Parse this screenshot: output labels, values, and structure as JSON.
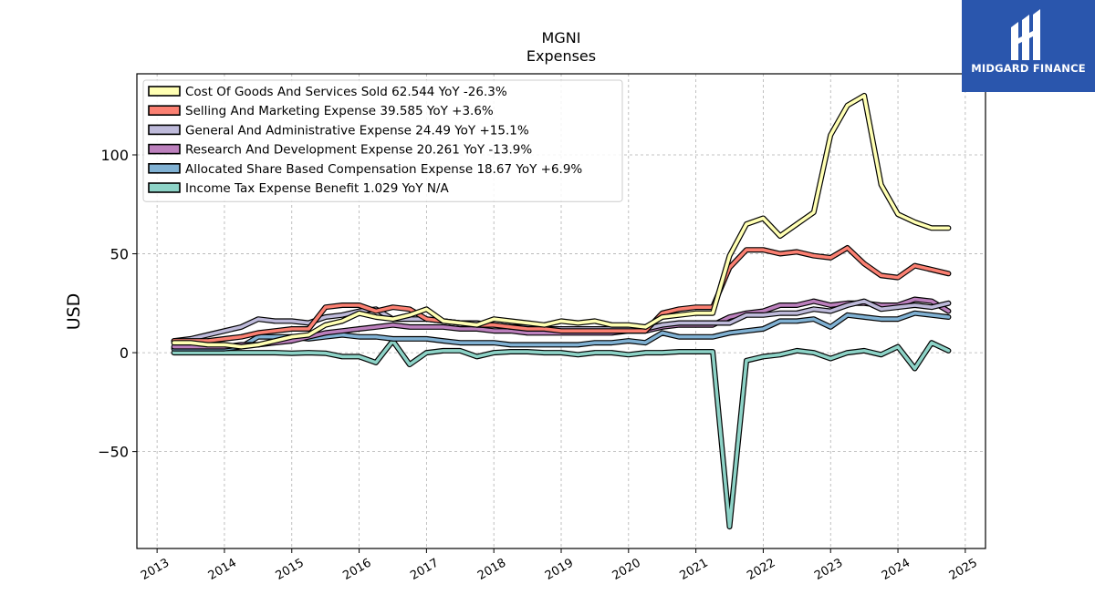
{
  "brand": {
    "name": "MIDGARD FINANCE",
    "bg_color": "#2a56ad"
  },
  "chart_data": {
    "type": "line",
    "title": "MGNI",
    "subtitle": "Expenses",
    "ylabel": "USD",
    "xlabel": "",
    "xlim": [
      2012.7,
      2025.3
    ],
    "ylim": [
      -99,
      141
    ],
    "yticks": [
      -50,
      0,
      50,
      100
    ],
    "ytick_labels": [
      "−50",
      "0",
      "50",
      "100"
    ],
    "xticks": [
      2013,
      2014,
      2015,
      2016,
      2017,
      2018,
      2019,
      2020,
      2021,
      2022,
      2023,
      2024,
      2025
    ],
    "grid": true,
    "legend_position": "top-left",
    "series": [
      {
        "name": "Cost Of Goods And Services Sold",
        "legend": "Cost Of Goods And Services Sold  62.544 YoY -26.3%",
        "color": "#ffffb3",
        "x": [
          2013.25,
          2013.5,
          2013.75,
          2014.0,
          2014.25,
          2014.5,
          2014.75,
          2015.0,
          2015.25,
          2015.5,
          2015.75,
          2016.0,
          2016.25,
          2016.5,
          2016.75,
          2017.0,
          2017.25,
          2017.5,
          2017.75,
          2018.0,
          2018.25,
          2018.5,
          2018.75,
          2019.0,
          2019.25,
          2019.5,
          2019.75,
          2020.0,
          2020.25,
          2020.5,
          2020.75,
          2021.0,
          2021.25,
          2021.5,
          2021.75,
          2022.0,
          2022.25,
          2022.5,
          2022.75,
          2023.0,
          2023.25,
          2023.5,
          2023.75,
          2024.0,
          2024.25,
          2024.5,
          2024.75
        ],
        "values": [
          5,
          5,
          4,
          4,
          3,
          4,
          6,
          8,
          9,
          14,
          16,
          20,
          18,
          17,
          19,
          22,
          16,
          15,
          14,
          17,
          16,
          15,
          14,
          16,
          15,
          16,
          14,
          14,
          13,
          18,
          19,
          20,
          20,
          49,
          65,
          68,
          59,
          65,
          71,
          110,
          125,
          130,
          85,
          70,
          66,
          63,
          63
        ]
      },
      {
        "name": "Selling And Marketing Expense",
        "legend": "Selling And Marketing Expense  39.585 YoY +3.6%",
        "color": "#fb8072",
        "x": [
          2013.25,
          2013.5,
          2013.75,
          2014.0,
          2014.25,
          2014.5,
          2014.75,
          2015.0,
          2015.25,
          2015.5,
          2015.75,
          2016.0,
          2016.25,
          2016.5,
          2016.75,
          2017.0,
          2017.25,
          2017.5,
          2017.75,
          2018.0,
          2018.25,
          2018.5,
          2018.75,
          2019.0,
          2019.25,
          2019.5,
          2019.75,
          2020.0,
          2020.25,
          2020.5,
          2020.75,
          2021.0,
          2021.25,
          2021.5,
          2021.75,
          2022.0,
          2022.25,
          2022.5,
          2022.75,
          2023.0,
          2023.25,
          2023.5,
          2023.75,
          2024.0,
          2024.25,
          2024.5,
          2024.75
        ],
        "values": [
          6,
          6,
          6,
          7,
          8,
          10,
          11,
          12,
          12,
          23,
          24,
          24,
          21,
          23,
          22,
          17,
          16,
          15,
          14,
          14,
          13,
          12,
          12,
          11,
          11,
          11,
          11,
          11,
          11,
          20,
          22,
          23,
          23,
          43,
          52,
          52,
          50,
          51,
          49,
          48,
          53,
          45,
          39,
          38,
          44,
          42,
          40
        ]
      },
      {
        "name": "General And Administrative Expense",
        "legend": "General And Administrative Expense  24.49 YoY +15.1%",
        "color": "#bebada",
        "x": [
          2013.25,
          2013.5,
          2013.75,
          2014.0,
          2014.25,
          2014.5,
          2014.75,
          2015.0,
          2015.25,
          2015.5,
          2015.75,
          2016.0,
          2016.25,
          2016.5,
          2016.75,
          2017.0,
          2017.25,
          2017.5,
          2017.75,
          2018.0,
          2018.25,
          2018.5,
          2018.75,
          2019.0,
          2019.25,
          2019.5,
          2019.75,
          2020.0,
          2020.25,
          2020.5,
          2020.75,
          2021.0,
          2021.25,
          2021.5,
          2021.75,
          2022.0,
          2022.25,
          2022.5,
          2022.75,
          2023.0,
          2023.25,
          2023.5,
          2023.75,
          2024.0,
          2024.25,
          2024.5,
          2024.75
        ],
        "values": [
          6,
          7,
          9,
          11,
          13,
          17,
          16,
          16,
          15,
          18,
          19,
          21,
          22,
          17,
          17,
          17,
          16,
          15,
          15,
          14,
          13,
          13,
          12,
          12,
          12,
          12,
          12,
          12,
          12,
          14,
          15,
          15,
          15,
          15,
          19,
          19,
          20,
          20,
          22,
          21,
          24,
          26,
          22,
          23,
          24,
          23,
          25
        ]
      },
      {
        "name": "Research And Development Expense",
        "legend": "Research And Development Expense  20.261 YoY -13.9%",
        "color": "#bc80bd",
        "x": [
          2013.25,
          2013.5,
          2013.75,
          2014.0,
          2014.25,
          2014.5,
          2014.75,
          2015.0,
          2015.25,
          2015.5,
          2015.75,
          2016.0,
          2016.25,
          2016.5,
          2016.75,
          2017.0,
          2017.25,
          2017.5,
          2017.75,
          2018.0,
          2018.25,
          2018.5,
          2018.75,
          2019.0,
          2019.25,
          2019.5,
          2019.75,
          2020.0,
          2020.25,
          2020.5,
          2020.75,
          2021.0,
          2021.25,
          2021.5,
          2021.75,
          2022.0,
          2022.25,
          2022.5,
          2022.75,
          2023.0,
          2023.25,
          2023.5,
          2023.75,
          2024.0,
          2024.25,
          2024.5,
          2024.75
        ],
        "values": [
          3,
          3,
          3,
          3,
          4,
          4,
          5,
          6,
          8,
          10,
          11,
          12,
          13,
          14,
          13,
          13,
          13,
          12,
          12,
          11,
          11,
          10,
          10,
          10,
          10,
          10,
          10,
          11,
          11,
          13,
          14,
          14,
          14,
          18,
          20,
          21,
          24,
          24,
          26,
          24,
          25,
          25,
          24,
          24,
          27,
          26,
          21
        ]
      },
      {
        "name": "Allocated Share Based Compensation Expense",
        "legend": "Allocated Share Based Compensation Expense  18.67 YoY +6.9%",
        "color": "#80b1d3",
        "x": [
          2013.25,
          2013.5,
          2013.75,
          2014.0,
          2014.25,
          2014.5,
          2014.75,
          2015.0,
          2015.25,
          2015.5,
          2015.75,
          2016.0,
          2016.25,
          2016.5,
          2016.75,
          2017.0,
          2017.25,
          2017.5,
          2017.75,
          2018.0,
          2018.25,
          2018.5,
          2018.75,
          2019.0,
          2019.25,
          2019.5,
          2019.75,
          2020.0,
          2020.25,
          2020.5,
          2020.75,
          2021.0,
          2021.25,
          2021.5,
          2021.75,
          2022.0,
          2022.25,
          2022.5,
          2022.75,
          2023.0,
          2023.25,
          2023.5,
          2023.75,
          2024.0,
          2024.25,
          2024.5,
          2024.75
        ],
        "values": [
          2,
          2,
          2,
          2,
          3,
          8,
          8,
          8,
          7,
          8,
          9,
          8,
          8,
          7,
          7,
          7,
          6,
          5,
          5,
          5,
          4,
          4,
          4,
          4,
          4,
          5,
          5,
          6,
          5,
          10,
          8,
          8,
          8,
          10,
          11,
          12,
          16,
          16,
          17,
          13,
          19,
          18,
          17,
          17,
          20,
          19,
          18
        ]
      },
      {
        "name": "Income Tax Expense Benefit",
        "legend": "Income Tax Expense Benefit  1.029 YoY N/A",
        "color": "#8dd3c7",
        "x": [
          2013.25,
          2013.5,
          2013.75,
          2014.0,
          2014.25,
          2014.5,
          2014.75,
          2015.0,
          2015.25,
          2015.5,
          2015.75,
          2016.0,
          2016.25,
          2016.5,
          2016.75,
          2017.0,
          2017.25,
          2017.5,
          2017.75,
          2018.0,
          2018.25,
          2018.5,
          2018.75,
          2019.0,
          2019.25,
          2019.5,
          2019.75,
          2020.0,
          2020.25,
          2020.5,
          2020.75,
          2021.0,
          2021.25,
          2021.5,
          2021.75,
          2022.0,
          2022.25,
          2022.5,
          2022.75,
          2023.0,
          2023.25,
          2023.5,
          2023.75,
          2024.0,
          2024.25,
          2024.5,
          2024.75
        ],
        "values": [
          0,
          0,
          0,
          0,
          0,
          0,
          0,
          -0.3,
          0,
          -0.3,
          -2,
          -2,
          -5,
          6,
          -6,
          0,
          1,
          1,
          -2,
          0,
          0.5,
          0.5,
          0,
          0,
          -1,
          0,
          0,
          -1,
          0,
          0,
          0.5,
          0.5,
          0.5,
          -88,
          -4,
          -2,
          -1,
          1,
          0,
          -3,
          0,
          1,
          -1,
          3,
          -8,
          5,
          1
        ]
      }
    ]
  }
}
